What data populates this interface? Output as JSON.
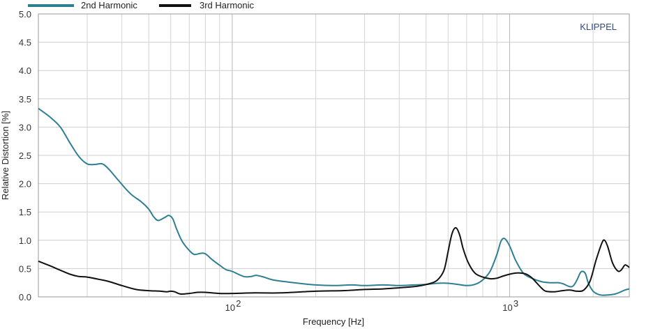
{
  "chart_data": {
    "type": "line",
    "xlabel": "Frequency  [Hz]",
    "ylabel": "Relative Distortion  [%]",
    "x_scale": "log",
    "xlim": [
      20,
      2700
    ],
    "ylim": [
      0,
      5
    ],
    "y_ticks": [
      "0.0",
      "0.5",
      "1.0",
      "1.5",
      "2.0",
      "2.5",
      "3.0",
      "3.5",
      "4.0",
      "4.5",
      "5.0"
    ],
    "x_tick_labels": [
      {
        "value": 100,
        "label": "10 2"
      },
      {
        "value": 1000,
        "label": "10 3"
      }
    ],
    "grid": true,
    "legend_position": "top-left",
    "annotation": "KLIPPEL",
    "series": [
      {
        "name": "2nd Harmonic",
        "color": "#2e7f93",
        "points": [
          [
            20,
            3.33
          ],
          [
            22,
            3.18
          ],
          [
            24,
            3.0
          ],
          [
            26,
            2.72
          ],
          [
            28,
            2.48
          ],
          [
            30,
            2.35
          ],
          [
            32,
            2.34
          ],
          [
            34,
            2.35
          ],
          [
            36,
            2.25
          ],
          [
            39,
            2.05
          ],
          [
            43,
            1.82
          ],
          [
            47,
            1.68
          ],
          [
            50,
            1.55
          ],
          [
            52,
            1.42
          ],
          [
            54,
            1.35
          ],
          [
            57,
            1.4
          ],
          [
            59,
            1.44
          ],
          [
            61,
            1.38
          ],
          [
            63,
            1.2
          ],
          [
            66,
            0.98
          ],
          [
            70,
            0.82
          ],
          [
            73,
            0.75
          ],
          [
            77,
            0.77
          ],
          [
            80,
            0.76
          ],
          [
            85,
            0.65
          ],
          [
            90,
            0.56
          ],
          [
            95,
            0.48
          ],
          [
            100,
            0.45
          ],
          [
            110,
            0.36
          ],
          [
            117,
            0.36
          ],
          [
            122,
            0.38
          ],
          [
            130,
            0.35
          ],
          [
            140,
            0.3
          ],
          [
            160,
            0.26
          ],
          [
            180,
            0.23
          ],
          [
            200,
            0.21
          ],
          [
            230,
            0.2
          ],
          [
            270,
            0.21
          ],
          [
            300,
            0.2
          ],
          [
            350,
            0.21
          ],
          [
            400,
            0.2
          ],
          [
            450,
            0.21
          ],
          [
            500,
            0.22
          ],
          [
            550,
            0.24
          ],
          [
            600,
            0.24
          ],
          [
            650,
            0.22
          ],
          [
            700,
            0.2
          ],
          [
            750,
            0.22
          ],
          [
            800,
            0.3
          ],
          [
            850,
            0.45
          ],
          [
            900,
            0.75
          ],
          [
            930,
            0.98
          ],
          [
            960,
            1.03
          ],
          [
            1000,
            0.9
          ],
          [
            1050,
            0.65
          ],
          [
            1120,
            0.42
          ],
          [
            1200,
            0.33
          ],
          [
            1300,
            0.27
          ],
          [
            1400,
            0.25
          ],
          [
            1500,
            0.25
          ],
          [
            1560,
            0.23
          ],
          [
            1650,
            0.18
          ],
          [
            1700,
            0.2
          ],
          [
            1750,
            0.3
          ],
          [
            1800,
            0.43
          ],
          [
            1840,
            0.45
          ],
          [
            1880,
            0.4
          ],
          [
            1920,
            0.25
          ],
          [
            2000,
            0.1
          ],
          [
            2100,
            0.04
          ],
          [
            2200,
            0.03
          ],
          [
            2400,
            0.05
          ],
          [
            2600,
            0.12
          ],
          [
            2700,
            0.14
          ]
        ]
      },
      {
        "name": "3rd Harmonic",
        "color": "#111111",
        "points": [
          [
            20,
            0.63
          ],
          [
            22,
            0.55
          ],
          [
            24,
            0.47
          ],
          [
            26,
            0.4
          ],
          [
            28,
            0.36
          ],
          [
            30,
            0.35
          ],
          [
            33,
            0.31
          ],
          [
            36,
            0.27
          ],
          [
            40,
            0.2
          ],
          [
            45,
            0.13
          ],
          [
            50,
            0.11
          ],
          [
            55,
            0.1
          ],
          [
            58,
            0.09
          ],
          [
            60,
            0.1
          ],
          [
            62,
            0.09
          ],
          [
            65,
            0.05
          ],
          [
            70,
            0.06
          ],
          [
            75,
            0.08
          ],
          [
            80,
            0.08
          ],
          [
            90,
            0.06
          ],
          [
            100,
            0.06
          ],
          [
            120,
            0.07
          ],
          [
            150,
            0.07
          ],
          [
            200,
            0.1
          ],
          [
            250,
            0.11
          ],
          [
            300,
            0.13
          ],
          [
            350,
            0.14
          ],
          [
            400,
            0.16
          ],
          [
            450,
            0.18
          ],
          [
            480,
            0.2
          ],
          [
            520,
            0.24
          ],
          [
            550,
            0.3
          ],
          [
            580,
            0.47
          ],
          [
            600,
            0.8
          ],
          [
            620,
            1.12
          ],
          [
            640,
            1.22
          ],
          [
            660,
            1.1
          ],
          [
            680,
            0.85
          ],
          [
            710,
            0.6
          ],
          [
            750,
            0.42
          ],
          [
            800,
            0.35
          ],
          [
            850,
            0.32
          ],
          [
            900,
            0.33
          ],
          [
            950,
            0.37
          ],
          [
            1000,
            0.4
          ],
          [
            1050,
            0.42
          ],
          [
            1100,
            0.42
          ],
          [
            1150,
            0.4
          ],
          [
            1200,
            0.34
          ],
          [
            1250,
            0.25
          ],
          [
            1300,
            0.16
          ],
          [
            1350,
            0.1
          ],
          [
            1450,
            0.09
          ],
          [
            1550,
            0.11
          ],
          [
            1650,
            0.12
          ],
          [
            1750,
            0.1
          ],
          [
            1850,
            0.12
          ],
          [
            1950,
            0.28
          ],
          [
            2050,
            0.65
          ],
          [
            2150,
            0.95
          ],
          [
            2200,
            1.0
          ],
          [
            2260,
            0.88
          ],
          [
            2350,
            0.6
          ],
          [
            2450,
            0.46
          ],
          [
            2520,
            0.47
          ],
          [
            2600,
            0.56
          ],
          [
            2650,
            0.55
          ],
          [
            2700,
            0.52
          ]
        ]
      }
    ]
  }
}
